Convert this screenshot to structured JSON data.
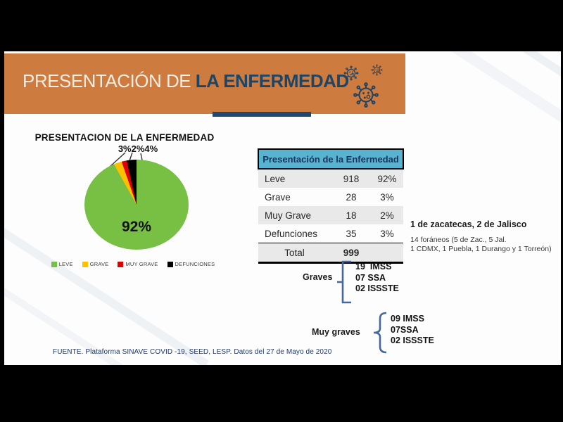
{
  "banner": {
    "title_light": "PRESENTACIÓN DE ",
    "title_bold": "LA ENFERMEDAD",
    "bg_color": "#cd7b3f",
    "accent_color": "#1f4971"
  },
  "chart_data": {
    "type": "pie",
    "title": "PRESENTACION DE LA ENFERMEDAD",
    "categories": [
      "LEVE",
      "GRAVE",
      "MUY GRAVE",
      "DEFUNCIONES"
    ],
    "values": [
      918,
      28,
      18,
      35
    ],
    "percent_labels": [
      "92%",
      "3%",
      "2%",
      "3%"
    ],
    "colors": [
      "#77c044",
      "#ffc000",
      "#e00000",
      "#000000"
    ],
    "big_slice_label": "92%",
    "small_slices_label": "3%2%4%",
    "legend_position": "bottom"
  },
  "table": {
    "header": "Presentación de la Enfermedad",
    "header_bg": "#57b3d0",
    "rows": [
      {
        "label": "Leve",
        "value": "918",
        "pct": "92%"
      },
      {
        "label": "Grave",
        "value": "28",
        "pct": "3%"
      },
      {
        "label": "Muy Grave",
        "value": "18",
        "pct": "2%"
      },
      {
        "label": "Defunciones",
        "value": "35",
        "pct": "3%"
      }
    ],
    "total_label": "Total",
    "total_value": "999"
  },
  "annotations": {
    "origin_bold": "1 de zacatecas, 2 de Jalisco",
    "origin_line1": "14 foráneos (5 de Zac., 5 Jal.",
    "origin_line2": "1 CDMX, 1 Puebla, 1 Durango y 1 Torreón)",
    "graves": {
      "label": "Graves",
      "items": [
        "19  IMSS",
        "07 SSA",
        "02 ISSSTE"
      ]
    },
    "muy_graves": {
      "label": "Muy graves",
      "items": [
        "09 IMSS",
        "07SSA",
        "02 ISSSTE"
      ]
    }
  },
  "footer": {
    "source": "FUENTE. Plataforma SINAVE COVID -19, SEED, LESP. Datos del 27 de Mayo de 2020"
  }
}
